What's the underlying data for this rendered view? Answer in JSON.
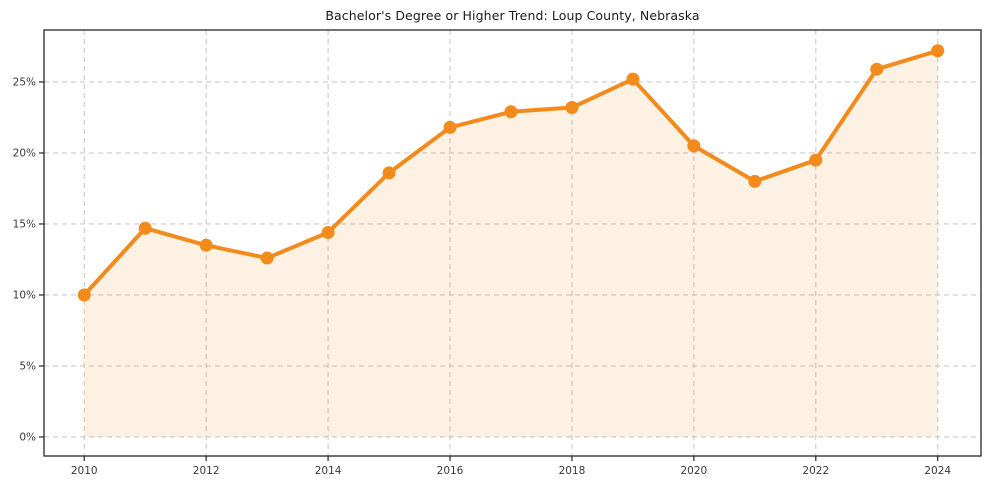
{
  "chart_data": {
    "type": "area",
    "title": "Bachelor's Degree or Higher Trend: Loup County, Nebraska",
    "xlabel": "",
    "ylabel": "",
    "x": [
      2010,
      2011,
      2012,
      2013,
      2014,
      2015,
      2016,
      2017,
      2018,
      2019,
      2020,
      2021,
      2022,
      2023,
      2024
    ],
    "values": [
      10.0,
      14.7,
      13.5,
      12.6,
      14.4,
      18.6,
      21.8,
      22.9,
      23.2,
      25.2,
      20.5,
      18.0,
      19.5,
      25.9,
      27.2
    ],
    "value_suffix": "%",
    "xticks": [
      2010,
      2012,
      2014,
      2016,
      2018,
      2020,
      2022,
      2024
    ],
    "xtick_labels": [
      "2010",
      "2012",
      "2014",
      "2016",
      "2018",
      "2020",
      "2022",
      "2024"
    ],
    "yticks": [
      0,
      5,
      10,
      15,
      20,
      25
    ],
    "ytick_labels": [
      "0%",
      "5%",
      "10%",
      "15%",
      "20%",
      "25%"
    ],
    "xlim": [
      2009.34,
      2024.71
    ],
    "ylim": [
      -1.34,
      28.66
    ],
    "grid": true,
    "grid_style": "dashed",
    "legend_position": "none",
    "baseline_value": 0,
    "colors": {
      "line": "#f28a1c",
      "marker": "#f28a1c",
      "fill": "#f28a1c",
      "fill_opacity": 0.12,
      "grid": "#c9c9c9",
      "spine": "#262626",
      "tick": "#262626",
      "tick_label": "#3a3a3a",
      "title": "#1a1a1a",
      "background": "#ffffff"
    }
  }
}
